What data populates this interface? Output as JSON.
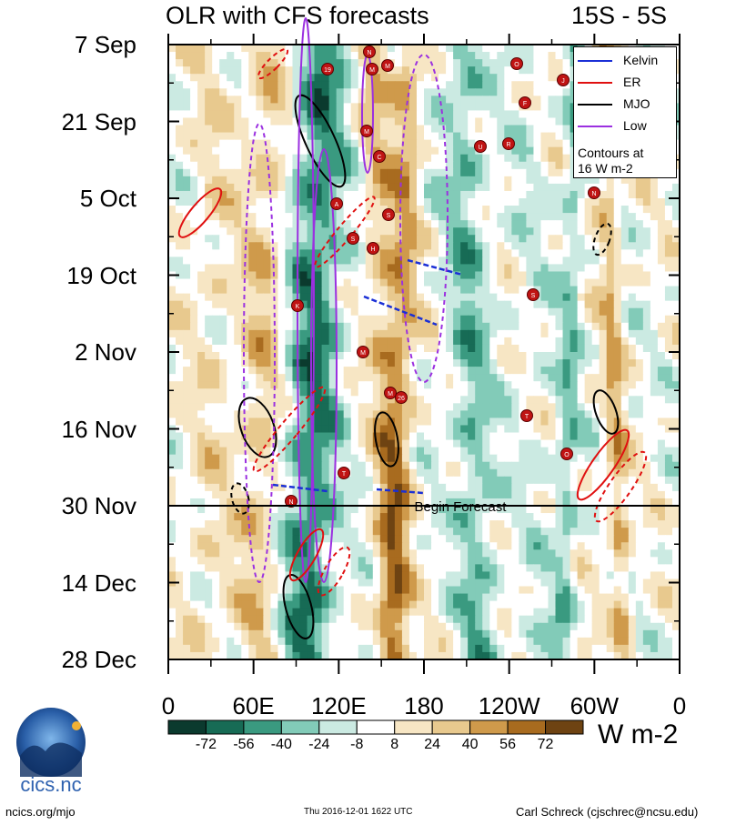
{
  "header": {
    "title": "OLR with CFS forecasts",
    "region": "15S - 5S"
  },
  "chart_data": {
    "type": "heatmap",
    "title": "OLR with CFS forecasts",
    "region": "15S - 5S",
    "xlabel": "",
    "ylabel": "",
    "x_ticks": [
      "0",
      "60E",
      "120E",
      "180",
      "120W",
      "60W",
      "0"
    ],
    "y_ticks": [
      "7 Sep",
      "21 Sep",
      "5 Oct",
      "19 Oct",
      "2 Nov",
      "16 Nov",
      "30 Nov",
      "14 Dec",
      "28 Dec"
    ],
    "colorbar": {
      "labels": [
        "-72",
        "-56",
        "-40",
        "-24",
        "-8",
        "8",
        "24",
        "40",
        "56",
        "72"
      ],
      "colors": [
        "#0b3a2e",
        "#176b55",
        "#3a9a80",
        "#82cbb8",
        "#cbeae2",
        "#ffffff",
        "#f7e6c4",
        "#e8c98e",
        "#cf9a4b",
        "#a86b1f",
        "#6e4312"
      ],
      "units": "W m-2"
    },
    "legend": {
      "entries": [
        {
          "label": "Kelvin",
          "color": "#1a2fd6",
          "style": "solid"
        },
        {
          "label": "ER",
          "color": "#e01010",
          "style": "solid"
        },
        {
          "label": "MJO",
          "color": "#000000",
          "style": "solid"
        },
        {
          "label": "Low",
          "color": "#9b30e0",
          "style": "solid"
        }
      ],
      "note": [
        "Contours at",
        "16 W m-2"
      ]
    },
    "annotation": "Begin Forecast",
    "storm_markers": [
      "N",
      "M",
      "M",
      "19",
      "M",
      "O",
      "J",
      "F",
      "R",
      "U",
      "C",
      "N",
      "A",
      "S",
      "S",
      "H",
      "K",
      "S",
      "M",
      "M",
      "26",
      "T",
      "O",
      "T",
      "N"
    ]
  },
  "footer": {
    "logo_text": "cics.nc",
    "left": "ncics.org/mjo",
    "center": "Thu 2016-12-01 1622 UTC",
    "right": "Carl Schreck (cjschrec@ncsu.edu)"
  }
}
